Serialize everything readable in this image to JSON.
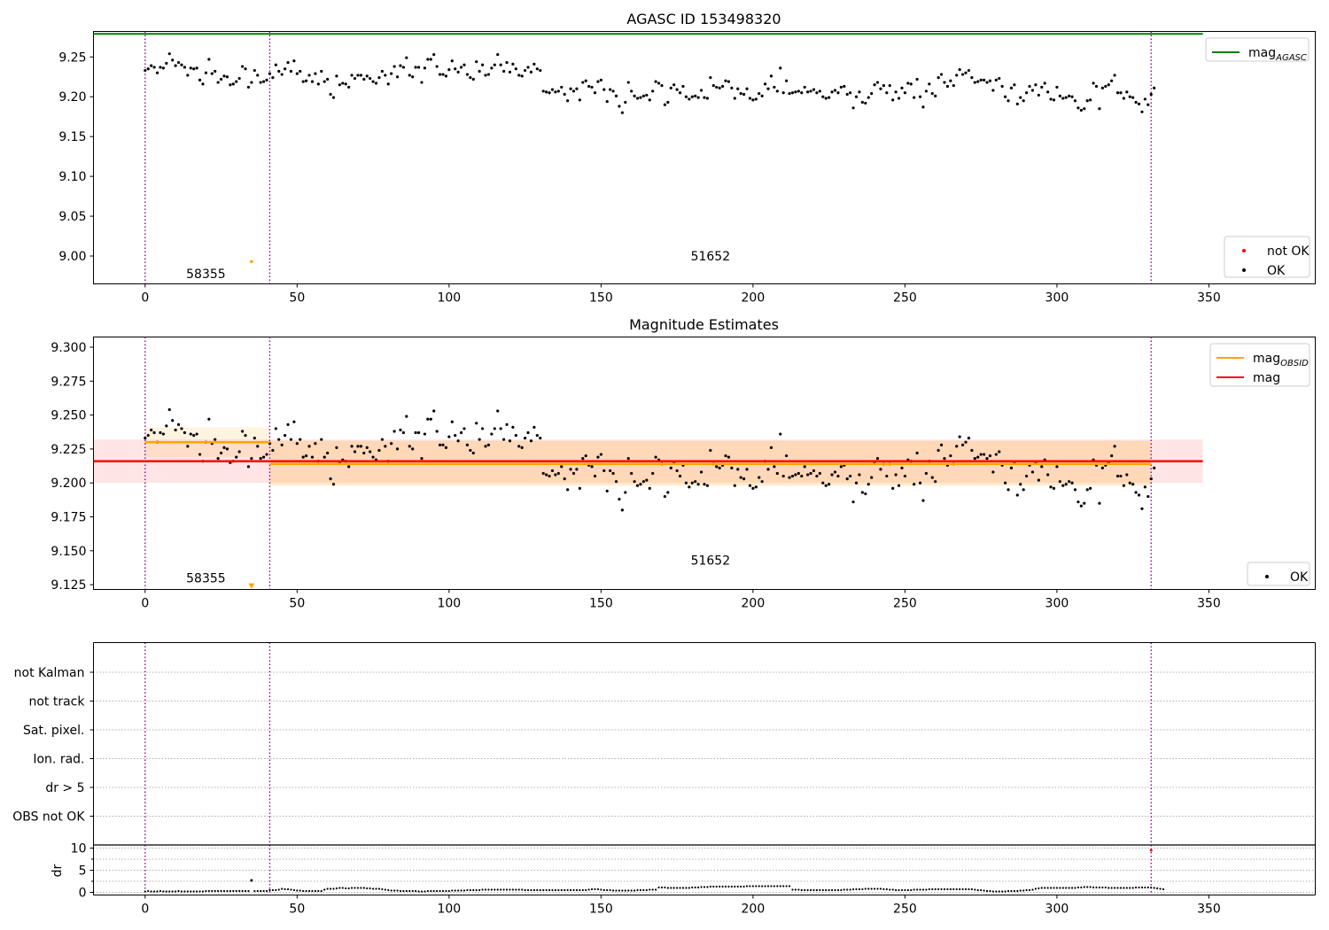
{
  "chart_data": [
    {
      "type": "scatter",
      "title": "AGASC ID 153498320",
      "xlim": [
        -17,
        385
      ],
      "ylim": [
        8.965,
        9.282
      ],
      "x_ticks": [
        0,
        50,
        100,
        150,
        200,
        250,
        300,
        350
      ],
      "y_ticks": [
        9.0,
        9.05,
        9.1,
        9.15,
        9.2,
        9.25
      ],
      "y_tick_labels": [
        "9.00",
        "9.05",
        "9.10",
        "9.15",
        "9.20",
        "9.25"
      ],
      "vlines": [
        0,
        41,
        331
      ],
      "hlines": [
        {
          "name": "mag_AGASC",
          "y": 9.279,
          "x_range": [
            -17,
            348
          ],
          "color": "#008000"
        }
      ],
      "segment_labels": [
        {
          "text": "58355",
          "x": 20,
          "y": 8.978
        },
        {
          "text": "51652",
          "x": 186,
          "y": 9.0
        }
      ],
      "series": [
        {
          "name": "not OK",
          "color": "#ff0000",
          "points": []
        },
        {
          "name": "OK",
          "color": "#000000",
          "points": "ok_series",
          "outliers": [
            {
              "x": 35,
              "y": 8.993,
              "color": "#ffa500"
            }
          ]
        }
      ],
      "legends": [
        {
          "position": "top-right",
          "entries": [
            {
              "kind": "line",
              "color": "#008000",
              "label": "mag",
              "sub": "AGASC"
            }
          ]
        },
        {
          "position": "bottom-right",
          "entries": [
            {
              "kind": "dot",
              "color": "#ff0000",
              "label": "not OK"
            },
            {
              "kind": "dot",
              "color": "#000000",
              "label": "OK"
            }
          ]
        }
      ]
    },
    {
      "type": "scatter",
      "title": "Magnitude Estimates",
      "xlim": [
        -17,
        385
      ],
      "ylim": [
        9.1215,
        9.3075
      ],
      "x_ticks": [
        0,
        50,
        100,
        150,
        200,
        250,
        300,
        350
      ],
      "y_ticks": [
        9.125,
        9.15,
        9.175,
        9.2,
        9.225,
        9.25,
        9.275,
        9.3
      ],
      "y_tick_labels": [
        "9.125",
        "9.150",
        "9.175",
        "9.200",
        "9.225",
        "9.250",
        "9.275",
        "9.300"
      ],
      "vlines": [
        0,
        41,
        331
      ],
      "bands": [
        {
          "name": "mag",
          "x_range": [
            -17,
            348
          ],
          "y_range": [
            9.2,
            9.232
          ],
          "color": "#ff0000",
          "opacity": 0.1
        },
        {
          "name": "mag_OBSID 58355",
          "x_range": [
            0,
            41
          ],
          "y_range": [
            9.219,
            9.241
          ],
          "color": "#ffa500",
          "opacity": 0.12
        },
        {
          "name": "mag_OBSID 51652",
          "x_range": [
            41,
            331
          ],
          "y_range": [
            9.198,
            9.231
          ],
          "color": "#ffa500",
          "opacity": 0.2
        }
      ],
      "hlines": [
        {
          "name": "mag",
          "y": 9.216,
          "x_range": [
            -17,
            348
          ],
          "color": "#ff0000"
        },
        {
          "name": "mag_OBSID 58355",
          "y": 9.23,
          "x_range": [
            0,
            41
          ],
          "color": "#ffa500"
        },
        {
          "name": "mag_OBSID 51652",
          "y": 9.214,
          "x_range": [
            41,
            331
          ],
          "color": "#ffa500"
        }
      ],
      "segment_labels": [
        {
          "text": "58355",
          "x": 20,
          "y": 9.13
        },
        {
          "text": "51652",
          "x": 186,
          "y": 9.143
        }
      ],
      "series": [
        {
          "name": "OK",
          "color": "#000000",
          "points": "ok_series",
          "outliers": [
            {
              "x": 35,
              "y": 9.124,
              "color": "#ffa500",
              "marker": "triangle-down"
            }
          ]
        }
      ],
      "legends": [
        {
          "position": "top-right",
          "entries": [
            {
              "kind": "line",
              "color": "#ffa500",
              "label": "mag",
              "sub": "OBSID"
            },
            {
              "kind": "line",
              "color": "#ff0000",
              "label": "mag",
              "sub": ""
            }
          ]
        },
        {
          "position": "bottom-right",
          "entries": [
            {
              "kind": "dot",
              "color": "#000000",
              "label": "OK"
            }
          ]
        }
      ]
    },
    {
      "type": "scatter",
      "title": "",
      "xlim": [
        -17,
        385
      ],
      "flag_rows": [
        "not Kalman",
        "not track",
        "Sat. pixel.",
        "Ion. rad.",
        "dr > 5",
        "OBS not OK"
      ],
      "vlines": [
        0,
        41,
        331
      ],
      "grid": "dotted horizontal"
    },
    {
      "type": "scatter",
      "title": "",
      "xlim": [
        -17,
        385
      ],
      "ylim": [
        -0.6,
        10.7
      ],
      "x_ticks": [
        0,
        50,
        100,
        150,
        200,
        250,
        300,
        350
      ],
      "y_ticks": [
        0,
        5,
        10
      ],
      "y_tick_labels": [
        "0",
        "5",
        "10"
      ],
      "ylabel": "dr",
      "vlines": [
        0,
        41,
        331
      ],
      "dr_outliers": [
        {
          "x": 35,
          "y": 2.7,
          "color": "#000000"
        },
        {
          "x": 331,
          "y": 9.5,
          "color": "#ff0000"
        }
      ]
    }
  ],
  "ok_series": {
    "x_start": 0,
    "x_step": 1,
    "mag": [
      9.233,
      9.235,
      9.239,
      9.237,
      9.23,
      9.237,
      9.236,
      9.242,
      9.254,
      9.246,
      9.239,
      9.243,
      9.24,
      9.237,
      9.227,
      9.236,
      9.235,
      9.236,
      9.221,
      9.216,
      9.23,
      9.247,
      9.229,
      9.232,
      9.218,
      9.222,
      9.226,
      9.225,
      9.215,
      9.216,
      9.219,
      9.223,
      9.238,
      9.235,
      9.212,
      9.218,
      9.233,
      9.227,
      9.218,
      9.219,
      9.221,
      9.229,
      9.224,
      9.24,
      9.232,
      9.228,
      9.235,
      9.243,
      9.232,
      9.245,
      9.229,
      9.232,
      9.219,
      9.22,
      9.227,
      9.219,
      9.229,
      9.216,
      9.232,
      9.219,
      9.222,
      9.203,
      9.199,
      9.226,
      9.215,
      9.217,
      9.216,
      9.212,
      9.227,
      9.223,
      9.227,
      9.227,
      9.222,
      9.226,
      9.223,
      9.219,
      9.217,
      9.224,
      9.232,
      9.227,
      9.216,
      9.229,
      9.238,
      9.225,
      9.239,
      9.237,
      9.249,
      9.227,
      9.225,
      9.237,
      9.237,
      9.218,
      9.236,
      9.247,
      9.247,
      9.253,
      9.238,
      9.228,
      9.228,
      9.226,
      9.234,
      9.245,
      9.235,
      9.231,
      9.237,
      9.24,
      9.228,
      9.224,
      9.222,
      9.244,
      9.232,
      9.24,
      9.227,
      9.228,
      9.236,
      9.24,
      9.253,
      9.24,
      9.232,
      9.243,
      9.231,
      9.241,
      9.235,
      9.227,
      9.226,
      9.233,
      9.237,
      9.231,
      9.241,
      9.235,
      9.233,
      9.207,
      9.206,
      9.205,
      9.209,
      9.206,
      9.207,
      9.212,
      9.203,
      9.195,
      9.21,
      9.207,
      9.21,
      9.196,
      9.218,
      9.22,
      9.213,
      9.212,
      9.205,
      9.219,
      9.221,
      9.209,
      9.194,
      9.209,
      9.207,
      9.201,
      9.188,
      9.18,
      9.193,
      9.218,
      9.207,
      9.201,
      9.198,
      9.199,
      9.201,
      9.202,
      9.196,
      9.207,
      9.219,
      9.217,
      9.214,
      9.19,
      9.193,
      9.211,
      9.215,
      9.209,
      9.205,
      9.213,
      9.2,
      9.197,
      9.2,
      9.201,
      9.199,
      9.208,
      9.199,
      9.198,
      9.224,
      9.214,
      9.212,
      9.211,
      9.213,
      9.22,
      9.219,
      9.211,
      9.198,
      9.21,
      9.204,
      9.203,
      9.21,
      9.198,
      9.196,
      9.197,
      9.204,
      9.201,
      9.216,
      9.21,
      9.226,
      9.212,
      9.207,
      9.236,
      9.205,
      9.22,
      9.204,
      9.205,
      9.206,
      9.207,
      9.205,
      9.212,
      9.206,
      9.207,
      9.209,
      9.205,
      9.207,
      9.2,
      9.198,
      9.199,
      9.206,
      9.208,
      9.205,
      9.212,
      9.213,
      9.203,
      9.205,
      9.186,
      9.2,
      9.206,
      9.193,
      9.192,
      9.199,
      9.204,
      9.215,
      9.218,
      9.21,
      9.214,
      9.205,
      9.214,
      9.196,
      9.206,
      9.198,
      9.211,
      9.205,
      9.217,
      9.216,
      9.199,
      9.222,
      9.2,
      9.187,
      9.207,
      9.216,
      9.204,
      9.201,
      9.224,
      9.228,
      9.218,
      9.213,
      9.22,
      9.214,
      9.227,
      9.234,
      9.228,
      9.23,
      9.233,
      9.224,
      9.218,
      9.219,
      9.221,
      9.221,
      9.218,
      9.22,
      9.208,
      9.221,
      9.223,
      9.213,
      9.2,
      9.195,
      9.211,
      9.215,
      9.191,
      9.199,
      9.195,
      9.205,
      9.213,
      9.208,
      9.215,
      9.202,
      9.212,
      9.217,
      9.206,
      9.197,
      9.196,
      9.212,
      9.201,
      9.198,
      9.199,
      9.201,
      9.2,
      9.195,
      9.186,
      9.183,
      9.185,
      9.195,
      9.196,
      9.217,
      9.213,
      9.185,
      9.211,
      9.213,
      9.215,
      9.22,
      9.227,
      9.205,
      9.205,
      9.198,
      9.206,
      9.2,
      9.199,
      9.193,
      9.191,
      9.181,
      9.197,
      9.19,
      9.203,
      9.211
    ],
    "dr": [
      0.2,
      0.3,
      0.2,
      0.2,
      0.2,
      0.3,
      0.2,
      0.2,
      0.2,
      0.2,
      0.2,
      0.3,
      0.2,
      0.2,
      0.2,
      0.2,
      0.2,
      0.2,
      0.2,
      0.2,
      0.3,
      0.3,
      0.3,
      0.3,
      0.3,
      0.3,
      0.3,
      0.3,
      0.3,
      0.3,
      0.3,
      0.3,
      0.3,
      0.3,
      0.3,
      2.7,
      0.3,
      0.3,
      0.3,
      0.3,
      0.3,
      0.5,
      0.5,
      0.5,
      0.6,
      0.8,
      0.7,
      0.7,
      0.6,
      0.5,
      0.4,
      0.4,
      0.3,
      0.3,
      0.3,
      0.3,
      0.3,
      0.3,
      0.3,
      0.6,
      0.8,
      0.8,
      0.8,
      0.9,
      1.0,
      1.0,
      0.9,
      0.9,
      1.0,
      1.0,
      1.0,
      1.0,
      1.0,
      0.9,
      0.9,
      0.8,
      0.8,
      0.8,
      0.7,
      0.6,
      0.5,
      0.4,
      0.4,
      0.4,
      0.3,
      0.3,
      0.3,
      0.3,
      0.3,
      0.3,
      0.2,
      0.2,
      0.2,
      0.3,
      0.3,
      0.3,
      0.3,
      0.3,
      0.3,
      0.3,
      0.3,
      0.4,
      0.4,
      0.4,
      0.4,
      0.4,
      0.5,
      0.5,
      0.5,
      0.5,
      0.5,
      0.6,
      0.6,
      0.6,
      0.6,
      0.6,
      0.6,
      0.6,
      0.6,
      0.6,
      0.6,
      0.6,
      0.6,
      0.6,
      0.6,
      0.5,
      0.5,
      0.5,
      0.5,
      0.5,
      0.5,
      0.5,
      0.5,
      0.5,
      0.5,
      0.5,
      0.5,
      0.5,
      0.5,
      0.5,
      0.5,
      0.5,
      0.5,
      0.5,
      0.5,
      0.5,
      0.6,
      0.7,
      0.7,
      0.7,
      0.6,
      0.5,
      0.5,
      0.5,
      0.4,
      0.4,
      0.4,
      0.4,
      0.4,
      0.4,
      0.4,
      0.4,
      0.5,
      0.5,
      0.5,
      0.5,
      0.6,
      0.6,
      0.6,
      1.1,
      1.1,
      1.1,
      1.0,
      1.0,
      1.0,
      1.0,
      1.0,
      1.0,
      1.0,
      1.0,
      1.1,
      1.1,
      1.1,
      1.2,
      1.2,
      1.2,
      1.3,
      1.3,
      1.3,
      1.3,
      1.3,
      1.3,
      1.3,
      1.3,
      1.3,
      1.3,
      1.3,
      1.3,
      1.4,
      1.4,
      1.4,
      1.4,
      1.4,
      1.4,
      1.4,
      1.4,
      1.4,
      1.4,
      1.4,
      1.4,
      1.4,
      1.4,
      1.4,
      0.6,
      0.6,
      0.6,
      0.5,
      0.5,
      0.5,
      0.5,
      0.5,
      0.5,
      0.5,
      0.5,
      0.5,
      0.5,
      0.5,
      0.5,
      0.5,
      0.5,
      0.6,
      0.6,
      0.6,
      0.7,
      0.7,
      0.7,
      0.7,
      0.8,
      0.8,
      0.8,
      0.8,
      0.8,
      0.8,
      0.7,
      0.7,
      0.6,
      0.6,
      0.5,
      0.5,
      0.5,
      0.5,
      0.5,
      0.5,
      0.6,
      0.6,
      0.6,
      0.6,
      0.6,
      0.7,
      0.7,
      0.7,
      0.7,
      0.7,
      0.7,
      0.7,
      0.7,
      0.7,
      0.7,
      0.7,
      0.7,
      0.7,
      0.7,
      0.7,
      0.6,
      0.5,
      0.5,
      0.4,
      0.3,
      0.3,
      0.2,
      0.2,
      0.2,
      0.2,
      0.2,
      0.3,
      0.3,
      0.3,
      0.3,
      0.4,
      0.4,
      0.5,
      0.5,
      0.6,
      0.8,
      0.9,
      1.0,
      1.0,
      1.0,
      1.0,
      1.0,
      1.0,
      1.0,
      1.0,
      1.0,
      1.0,
      1.0,
      1.0,
      1.1,
      1.1,
      1.2,
      1.2,
      1.2,
      1.1,
      1.1,
      1.1,
      1.1,
      1.1,
      1.0,
      1.0,
      1.0,
      1.0,
      1.0,
      1.0,
      1.0,
      1.0,
      1.0,
      1.1,
      1.1,
      1.1,
      1.1,
      1.1,
      1.1,
      1.0,
      0.9,
      0.8,
      0.7
    ]
  }
}
